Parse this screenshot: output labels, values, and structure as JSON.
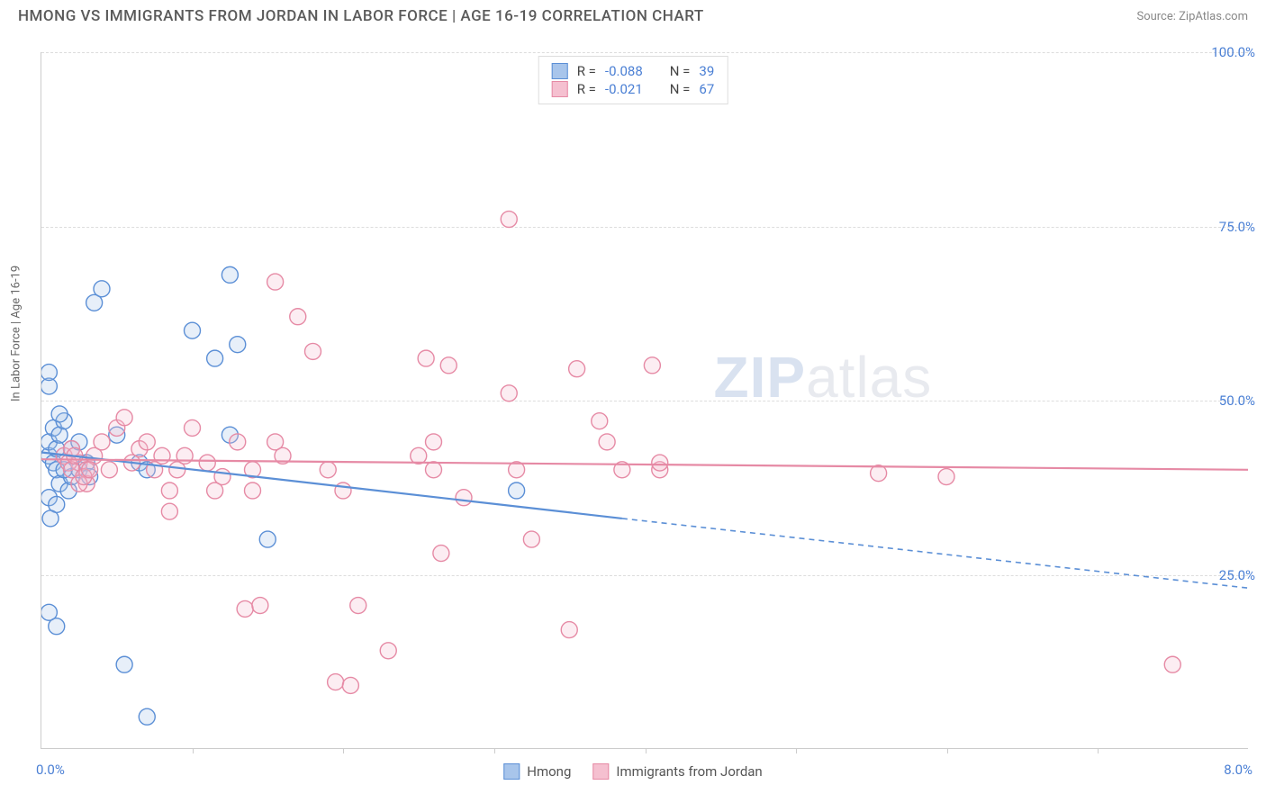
{
  "header": {
    "title": "HMONG VS IMMIGRANTS FROM JORDAN IN LABOR FORCE | AGE 16-19 CORRELATION CHART",
    "source": "Source: ZipAtlas.com"
  },
  "watermark": {
    "part1": "ZIP",
    "part2": "atlas"
  },
  "chart": {
    "type": "scatter",
    "background_color": "#ffffff",
    "grid_color": "#dddddd",
    "border_color": "#cccccc",
    "y_axis_label": "In Labor Force | Age 16-19",
    "y_axis_label_color": "#666666",
    "axis_label_fontsize": 13,
    "tick_color": "#4a7fd4",
    "tick_fontsize": 15,
    "xlim": [
      0.0,
      8.0
    ],
    "ylim": [
      0.0,
      100.0
    ],
    "x_ticks_major": [
      0.0,
      8.0
    ],
    "x_ticks_minor": [
      1.0,
      2.0,
      3.0,
      4.0,
      5.0,
      6.0,
      7.0
    ],
    "x_tick_labels": [
      "0.0%",
      "8.0%"
    ],
    "y_ticks": [
      25.0,
      50.0,
      75.0,
      100.0
    ],
    "y_tick_labels": [
      "25.0%",
      "50.0%",
      "75.0%",
      "100.0%"
    ],
    "marker_radius": 9,
    "marker_fill_opacity": 0.28,
    "marker_stroke_width": 1.4,
    "line_width": 2.2,
    "series": [
      {
        "key": "hmong",
        "label": "Hmong",
        "color_stroke": "#5b8fd6",
        "color_fill": "#a8c5eb",
        "R": "-0.088",
        "N": "39",
        "trend_solid": {
          "x1": 0.0,
          "y1": 42.5,
          "x2": 3.85,
          "y2": 33.0
        },
        "trend_dashed": {
          "x1": 3.85,
          "y1": 33.0,
          "x2": 8.0,
          "y2": 23.0
        },
        "points": [
          [
            0.05,
            42
          ],
          [
            0.05,
            44
          ],
          [
            0.08,
            46
          ],
          [
            0.08,
            41
          ],
          [
            0.1,
            43
          ],
          [
            0.1,
            40
          ],
          [
            0.12,
            38
          ],
          [
            0.12,
            45
          ],
          [
            0.15,
            47
          ],
          [
            0.05,
            52
          ],
          [
            0.05,
            54
          ],
          [
            0.12,
            48
          ],
          [
            0.35,
            64
          ],
          [
            0.4,
            66
          ],
          [
            0.18,
            37
          ],
          [
            0.2,
            39
          ],
          [
            0.25,
            40
          ],
          [
            0.05,
            36
          ],
          [
            0.1,
            35
          ],
          [
            0.06,
            33
          ],
          [
            0.5,
            45
          ],
          [
            0.65,
            41
          ],
          [
            0.7,
            40
          ],
          [
            0.05,
            19.5
          ],
          [
            0.1,
            17.5
          ],
          [
            0.55,
            12
          ],
          [
            0.7,
            4.5
          ],
          [
            1.0,
            60
          ],
          [
            1.25,
            68
          ],
          [
            1.3,
            58
          ],
          [
            1.15,
            56
          ],
          [
            1.25,
            45
          ],
          [
            1.5,
            30
          ],
          [
            0.2,
            43
          ],
          [
            0.25,
            44
          ],
          [
            0.3,
            41
          ],
          [
            0.32,
            39
          ],
          [
            0.15,
            40
          ],
          [
            3.15,
            37
          ]
        ]
      },
      {
        "key": "jordan",
        "label": "Immigrants from Jordan",
        "color_stroke": "#e68aa5",
        "color_fill": "#f5c0d0",
        "R": "-0.021",
        "N": "67",
        "trend_solid": {
          "x1": 0.0,
          "y1": 41.5,
          "x2": 8.0,
          "y2": 40.0
        },
        "trend_dashed": null,
        "points": [
          [
            0.15,
            42
          ],
          [
            0.2,
            43
          ],
          [
            0.25,
            41
          ],
          [
            0.3,
            40
          ],
          [
            0.35,
            42
          ],
          [
            0.3,
            38
          ],
          [
            0.4,
            44
          ],
          [
            0.45,
            40
          ],
          [
            0.5,
            46
          ],
          [
            0.55,
            47.5
          ],
          [
            0.6,
            41
          ],
          [
            0.65,
            43
          ],
          [
            0.7,
            44
          ],
          [
            0.75,
            40
          ],
          [
            0.8,
            42
          ],
          [
            0.85,
            37
          ],
          [
            0.85,
            34
          ],
          [
            0.9,
            40
          ],
          [
            0.95,
            42
          ],
          [
            1.0,
            46
          ],
          [
            1.1,
            41
          ],
          [
            1.15,
            37
          ],
          [
            1.2,
            39
          ],
          [
            1.3,
            44
          ],
          [
            1.4,
            40
          ],
          [
            1.4,
            37
          ],
          [
            1.55,
            44
          ],
          [
            1.6,
            42
          ],
          [
            1.55,
            67
          ],
          [
            1.35,
            20
          ],
          [
            1.45,
            20.5
          ],
          [
            1.7,
            62
          ],
          [
            1.8,
            57
          ],
          [
            1.9,
            40
          ],
          [
            2.0,
            37
          ],
          [
            1.95,
            9.5
          ],
          [
            2.05,
            9
          ],
          [
            2.1,
            20.5
          ],
          [
            2.3,
            14
          ],
          [
            2.5,
            42
          ],
          [
            2.55,
            56
          ],
          [
            2.6,
            44
          ],
          [
            2.6,
            40
          ],
          [
            2.65,
            28
          ],
          [
            2.8,
            36
          ],
          [
            2.7,
            55
          ],
          [
            3.1,
            76
          ],
          [
            3.1,
            51
          ],
          [
            3.15,
            40
          ],
          [
            3.25,
            30
          ],
          [
            3.5,
            17
          ],
          [
            3.55,
            54.5
          ],
          [
            3.7,
            47
          ],
          [
            3.75,
            44
          ],
          [
            3.85,
            40
          ],
          [
            4.05,
            55
          ],
          [
            4.1,
            40
          ],
          [
            4.1,
            41
          ],
          [
            5.55,
            39.5
          ],
          [
            6.0,
            39
          ],
          [
            7.5,
            12
          ],
          [
            0.18,
            41
          ],
          [
            0.2,
            40
          ],
          [
            0.22,
            42
          ],
          [
            0.25,
            38
          ],
          [
            0.28,
            39
          ],
          [
            0.32,
            40
          ]
        ]
      }
    ]
  },
  "legend_top": {
    "rows": [
      {
        "swatch_stroke": "#5b8fd6",
        "swatch_fill": "#a8c5eb",
        "R": "-0.088",
        "N": "39"
      },
      {
        "swatch_stroke": "#e68aa5",
        "swatch_fill": "#f5c0d0",
        "R": "-0.021",
        "N": "67"
      }
    ],
    "labels": {
      "R_prefix": "R = ",
      "N_prefix": "N = "
    }
  },
  "legend_bottom": {
    "items": [
      {
        "swatch_stroke": "#5b8fd6",
        "swatch_fill": "#a8c5eb",
        "label": "Hmong"
      },
      {
        "swatch_stroke": "#e68aa5",
        "swatch_fill": "#f5c0d0",
        "label": "Immigrants from Jordan"
      }
    ]
  }
}
